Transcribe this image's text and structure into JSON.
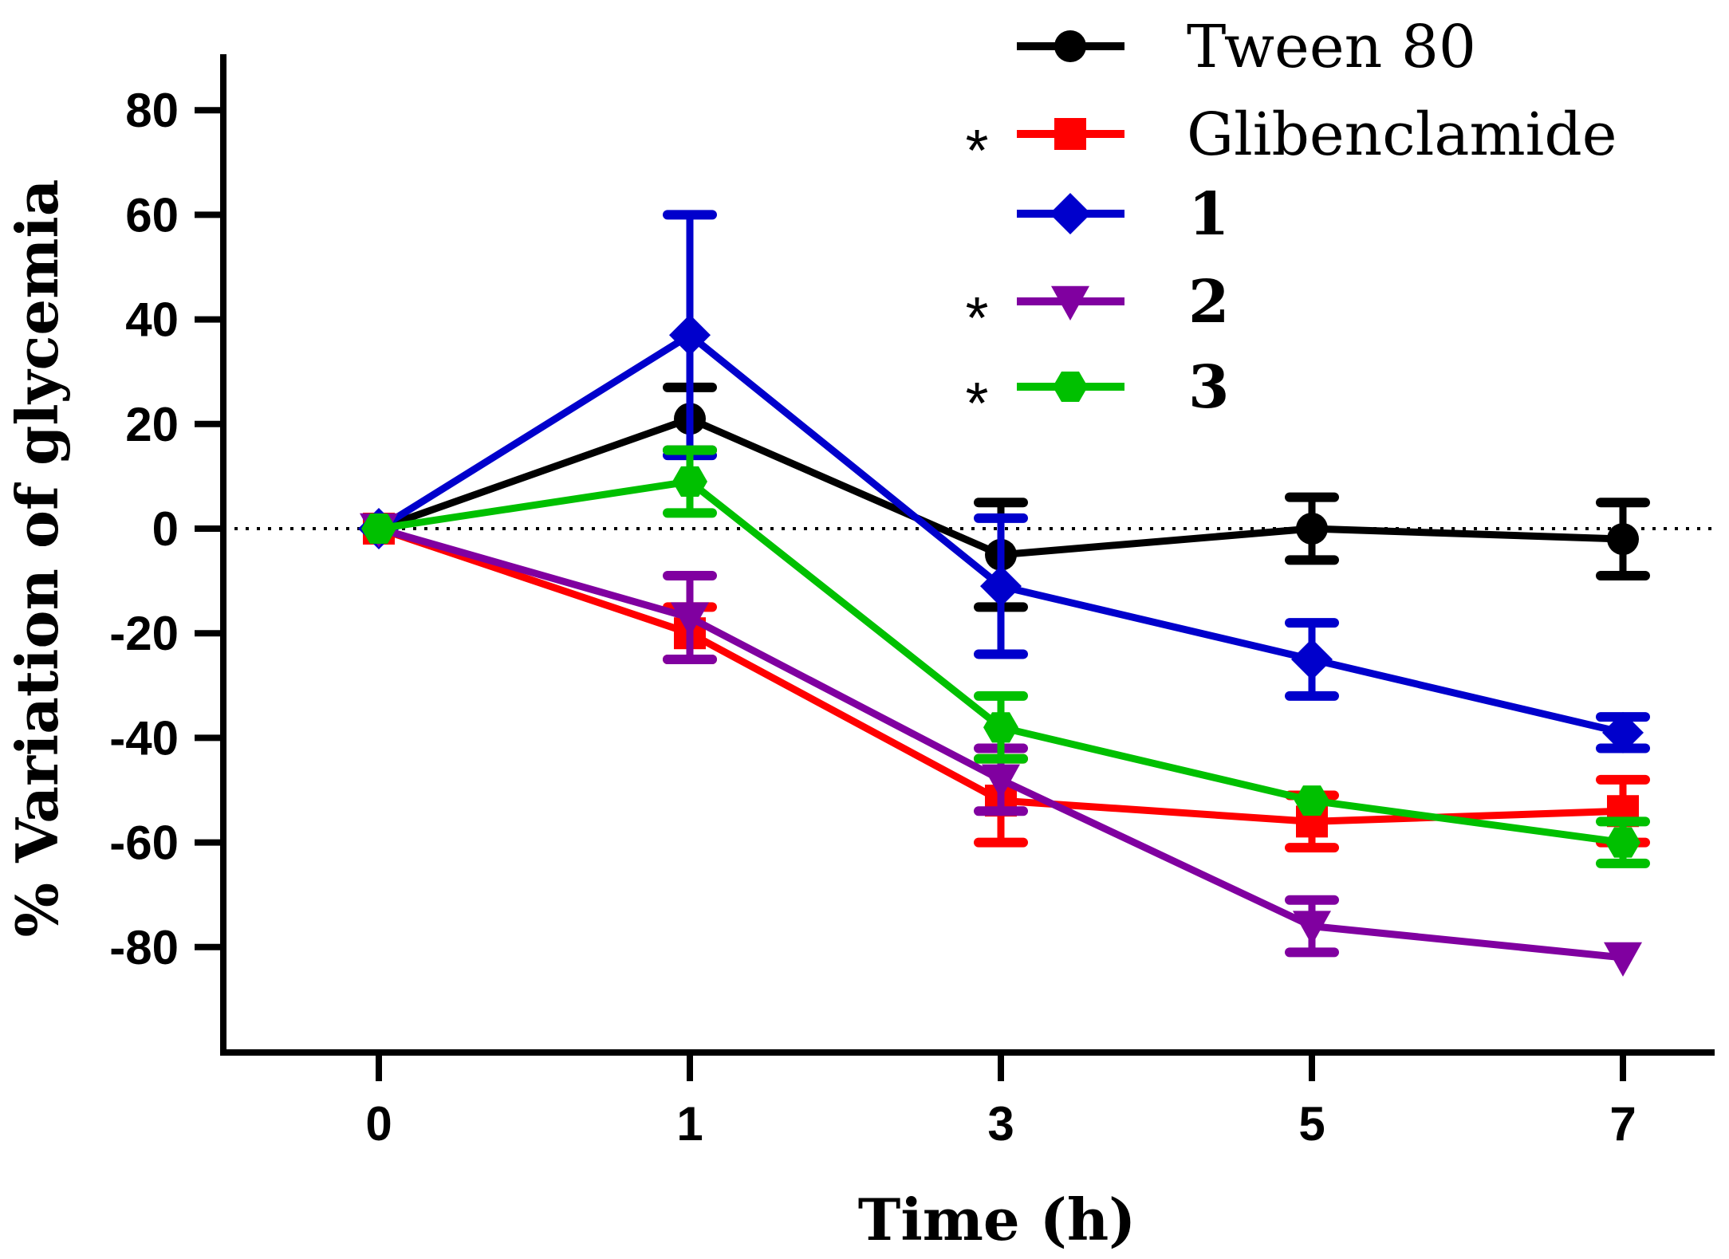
{
  "chart_data": {
    "type": "line",
    "title": "",
    "xlabel": "Time (h)",
    "ylabel": "% Variation of glycemia",
    "x": [
      0,
      1,
      3,
      5,
      7
    ],
    "x_tick_labels": [
      "0",
      "1",
      "3",
      "5",
      "7"
    ],
    "y_ticks": [
      80,
      60,
      40,
      20,
      0,
      -20,
      -40,
      -60,
      -80
    ],
    "y_tick_labels": [
      "80",
      "60",
      "40",
      "20",
      "0",
      "-20",
      "-40",
      "-60",
      "-80"
    ],
    "ylim": [
      -100,
      90
    ],
    "reference_line": 0,
    "legend_position": "top-right",
    "series": [
      {
        "name": "Tween 80",
        "significance": "",
        "color": "#000000",
        "marker": "circle",
        "values": [
          0,
          21,
          -5,
          0,
          -2
        ],
        "errors": [
          0,
          6,
          10,
          6,
          7
        ]
      },
      {
        "name": "Glibenclamide",
        "significance": "*",
        "color": "#ff0000",
        "marker": "square",
        "values": [
          0,
          -20,
          -52,
          -56,
          -54
        ],
        "errors": [
          0,
          5,
          8,
          5,
          6
        ]
      },
      {
        "name": "1",
        "significance": "",
        "color": "#0000cc",
        "marker": "diamond",
        "values": [
          0,
          37,
          -11,
          -25,
          -39
        ],
        "errors": [
          0,
          23,
          13,
          7,
          3
        ]
      },
      {
        "name": "2",
        "significance": "*",
        "color": "#8000a0",
        "marker": "triangle-down",
        "values": [
          0,
          -17,
          -48,
          -76,
          -82
        ],
        "errors": [
          0,
          8,
          6,
          5,
          0
        ]
      },
      {
        "name": "3",
        "significance": "*",
        "color": "#00c000",
        "marker": "hexagon",
        "values": [
          0,
          9,
          -38,
          -52,
          -60
        ],
        "errors": [
          0,
          6,
          6,
          0,
          4
        ]
      }
    ]
  }
}
